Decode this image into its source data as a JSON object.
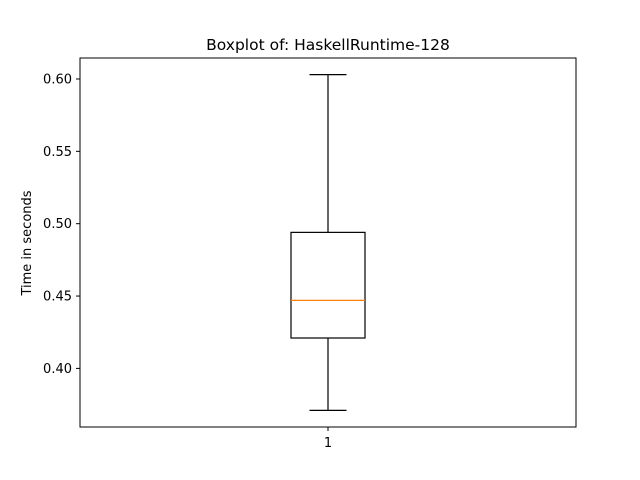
{
  "chart_data": {
    "type": "boxplot",
    "title": "Boxplot of: HaskellRuntime-128",
    "xlabel": "",
    "ylabel": "Time in seconds",
    "categories": [
      "1"
    ],
    "boxes": [
      {
        "category": "1",
        "whisker_low": 0.371,
        "q1": 0.421,
        "median": 0.447,
        "q3": 0.494,
        "whisker_high": 0.603
      }
    ],
    "ylim": [
      0.3595,
      0.6145
    ],
    "yticks": [
      0.4,
      0.45,
      0.5,
      0.55,
      0.6
    ],
    "ytick_labels": [
      "0.40",
      "0.45",
      "0.50",
      "0.55",
      "0.60"
    ],
    "grid": false,
    "colors": {
      "median": "#ff7f0e",
      "box": "#000000",
      "whisker": "#000000",
      "axes": "#000000"
    }
  }
}
